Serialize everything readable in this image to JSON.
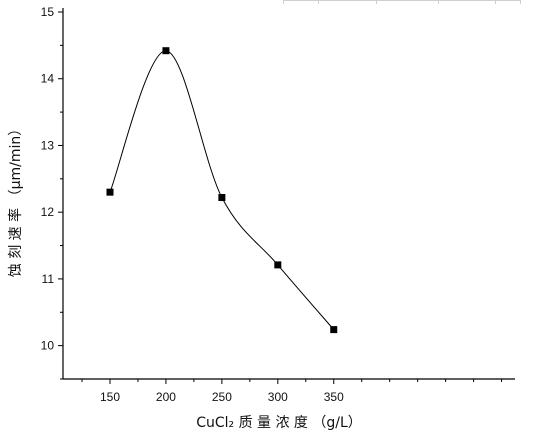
{
  "chart_data": {
    "type": "line",
    "x": [
      150,
      200,
      250,
      300,
      350
    ],
    "series": [
      {
        "values": [
          12.3,
          14.42,
          12.22,
          11.21,
          10.24
        ]
      }
    ],
    "title": "",
    "xlabel": "CuCl₂ 质 量 浓 度 （g/L）",
    "ylabel": "蚀 刻 速 率 （μm/min）",
    "xlim": [
      108,
      512
    ],
    "ylim": [
      9.5,
      15
    ],
    "xticks": [
      150,
      200,
      250,
      300,
      350
    ],
    "yticks": [
      10,
      11,
      12,
      13,
      14,
      15
    ],
    "grid": false,
    "legend": "none",
    "smooth": true,
    "marker": "square",
    "colors": {
      "line": "#000000",
      "marker": "#000000",
      "axis": "#000000"
    }
  },
  "watermark": ""
}
